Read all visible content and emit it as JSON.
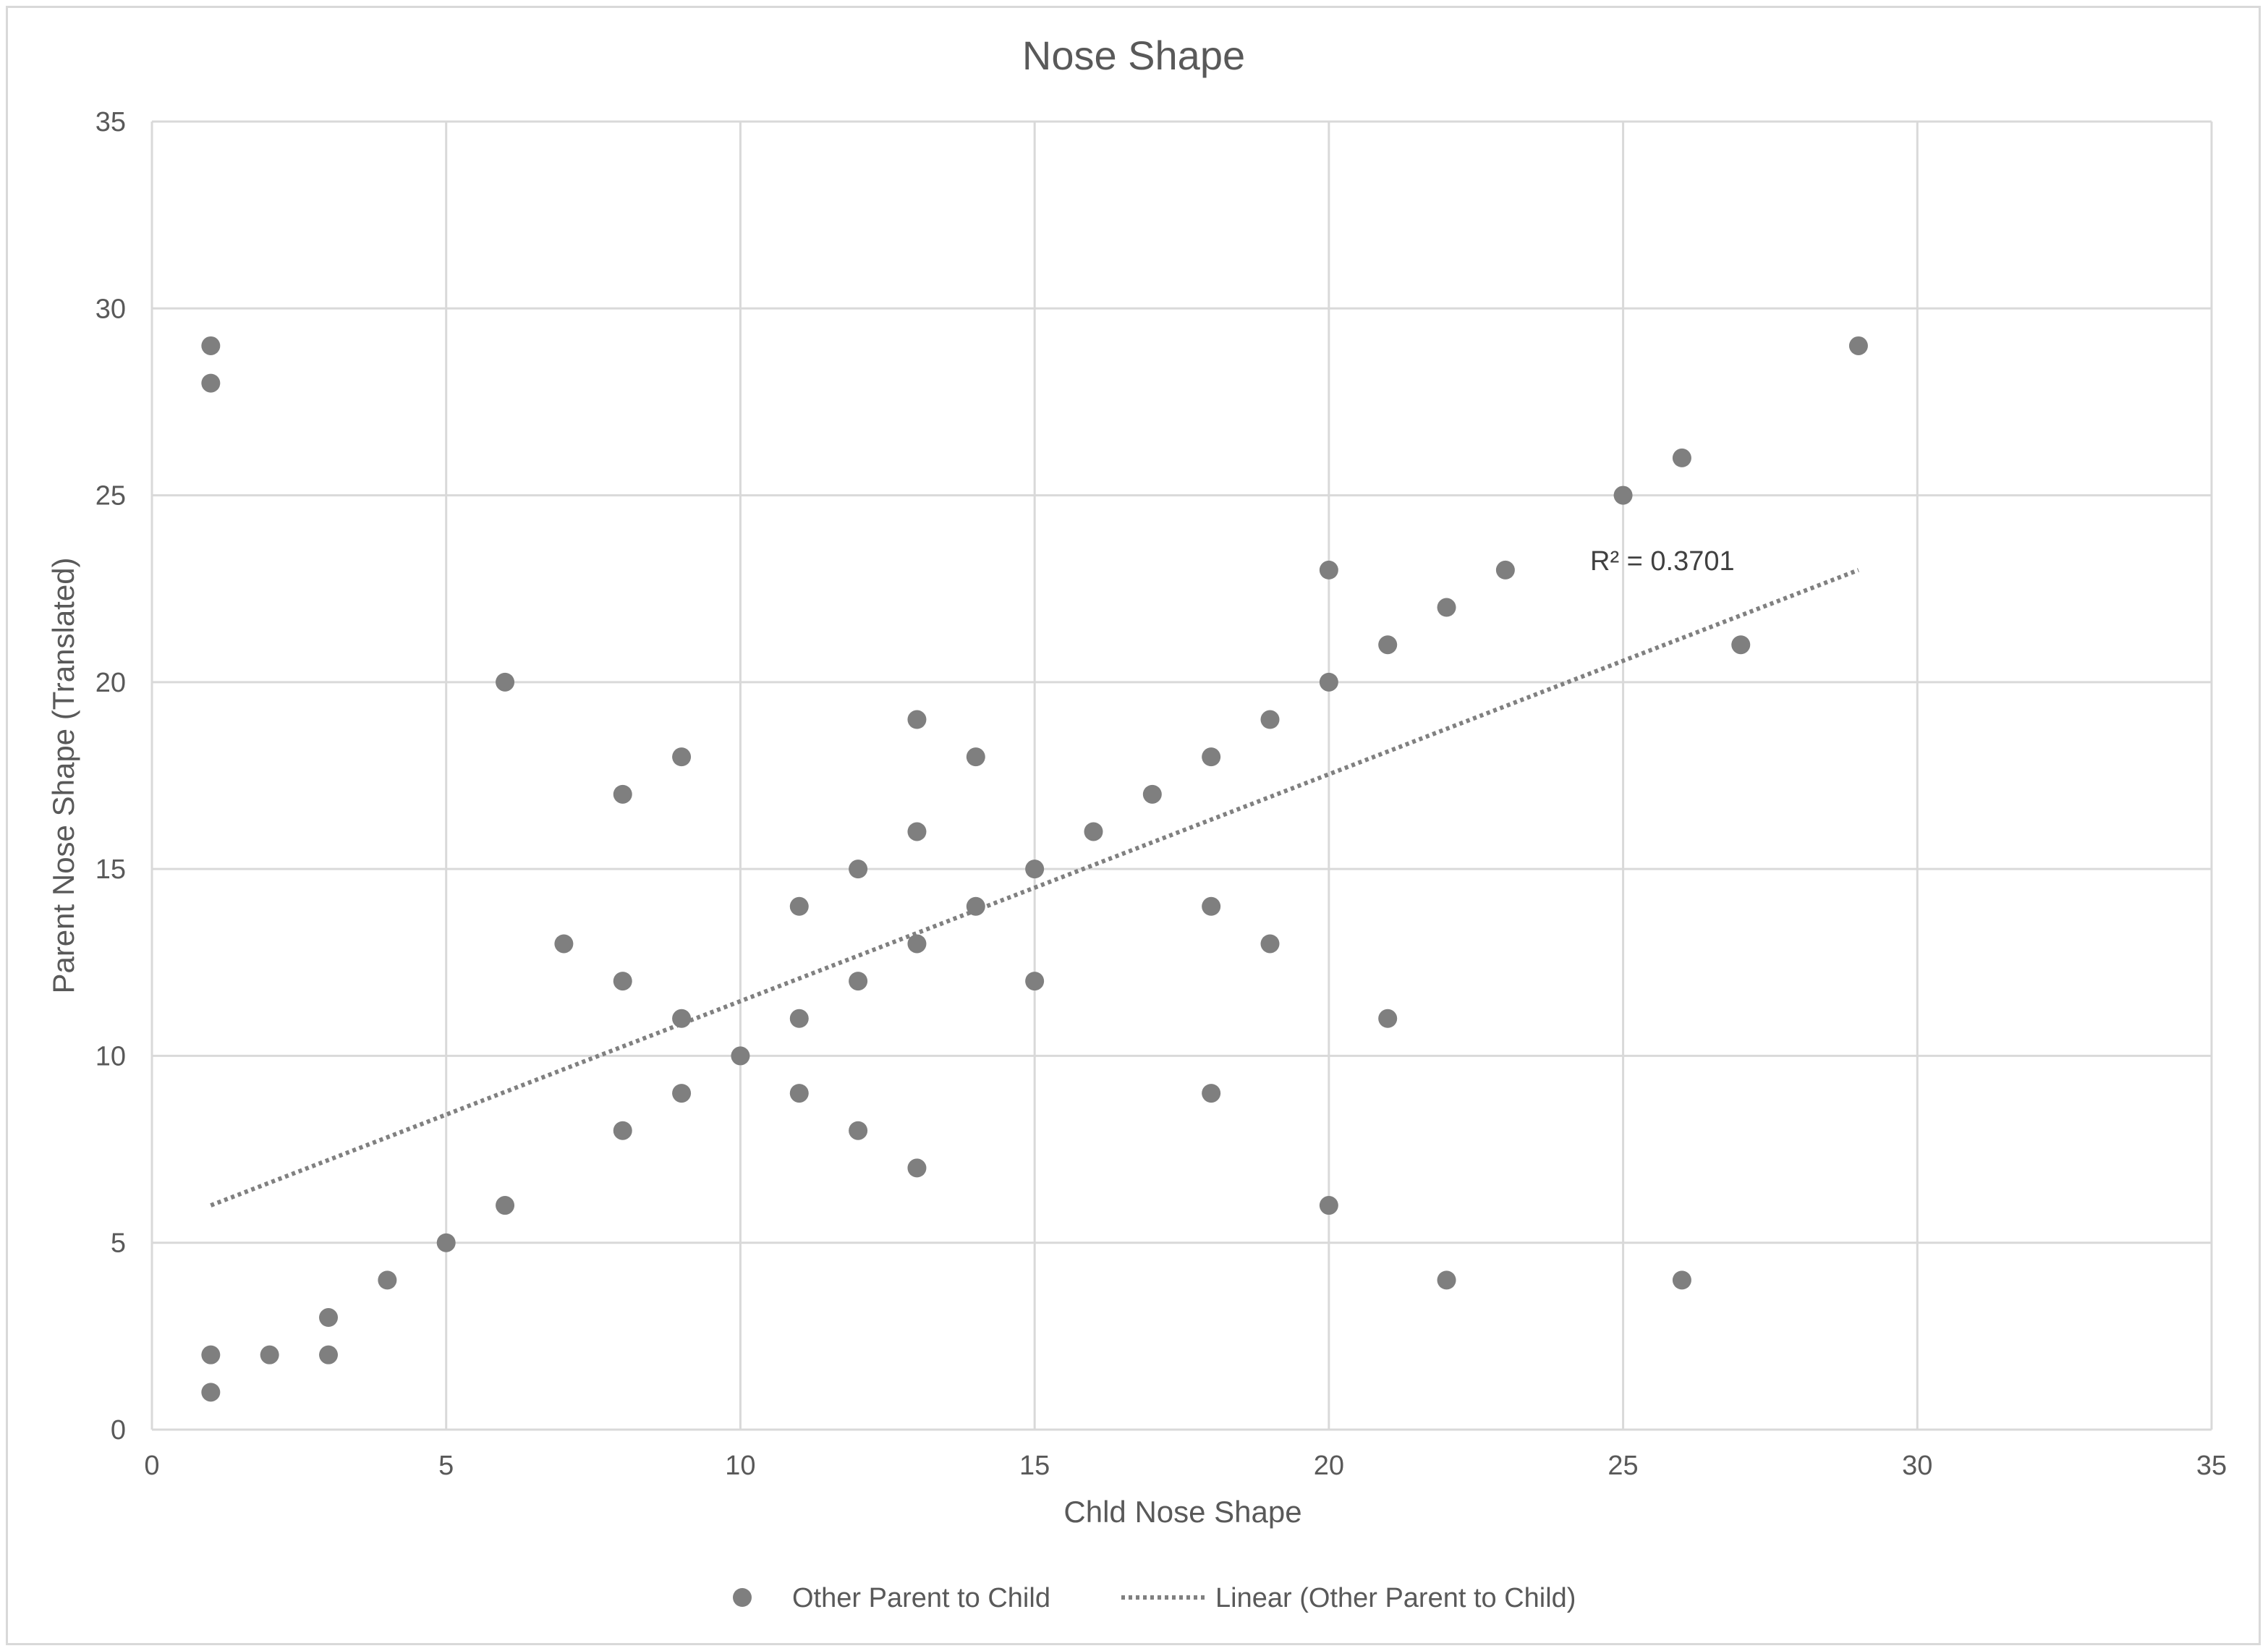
{
  "chart_data": {
    "type": "scatter",
    "title": "Nose Shape",
    "xlabel": "Chld Nose Shape",
    "ylabel": "Parent Nose Shape (Translated)",
    "xlim": [
      0,
      35
    ],
    "ylim": [
      0,
      35
    ],
    "xticks": [
      0,
      5,
      10,
      15,
      20,
      25,
      30,
      35
    ],
    "yticks": [
      0,
      5,
      10,
      15,
      20,
      25,
      30,
      35
    ],
    "grid": true,
    "legend_position": "bottom",
    "colors": {
      "marker": "#7f7f7f",
      "trendline": "#808080",
      "grid": "#d9d9d9",
      "text": "#595959"
    },
    "series": [
      {
        "name": "Other Parent to Child",
        "marker": "circle",
        "points": [
          [
            1,
            29
          ],
          [
            1,
            28
          ],
          [
            1,
            2
          ],
          [
            1,
            1
          ],
          [
            2,
            2
          ],
          [
            3,
            3
          ],
          [
            3,
            2
          ],
          [
            4,
            4
          ],
          [
            5,
            5
          ],
          [
            6,
            20
          ],
          [
            6,
            6
          ],
          [
            7,
            13
          ],
          [
            8,
            17
          ],
          [
            8,
            12
          ],
          [
            8,
            8
          ],
          [
            9,
            18
          ],
          [
            9,
            11
          ],
          [
            9,
            9
          ],
          [
            10,
            10
          ],
          [
            11,
            14
          ],
          [
            11,
            11
          ],
          [
            11,
            9
          ],
          [
            12,
            15
          ],
          [
            12,
            12
          ],
          [
            12,
            8
          ],
          [
            13,
            19
          ],
          [
            13,
            16
          ],
          [
            13,
            13
          ],
          [
            13,
            7
          ],
          [
            14,
            18
          ],
          [
            14,
            14
          ],
          [
            15,
            15
          ],
          [
            15,
            12
          ],
          [
            16,
            16
          ],
          [
            17,
            17
          ],
          [
            18,
            18
          ],
          [
            18,
            14
          ],
          [
            18,
            9
          ],
          [
            19,
            19
          ],
          [
            19,
            13
          ],
          [
            20,
            23
          ],
          [
            20,
            20
          ],
          [
            20,
            6
          ],
          [
            21,
            21
          ],
          [
            21,
            11
          ],
          [
            22,
            22
          ],
          [
            22,
            4
          ],
          [
            23,
            23
          ],
          [
            25,
            25
          ],
          [
            26,
            26
          ],
          [
            26,
            4
          ],
          [
            27,
            21
          ],
          [
            29,
            29
          ]
        ]
      }
    ],
    "trendline": {
      "name": "Linear (Other Parent to Child)",
      "type": "linear",
      "style": "dotted",
      "x_range": [
        1,
        29
      ],
      "y_range": [
        6,
        23
      ],
      "r_squared_label": "R² = 0.3701"
    }
  }
}
